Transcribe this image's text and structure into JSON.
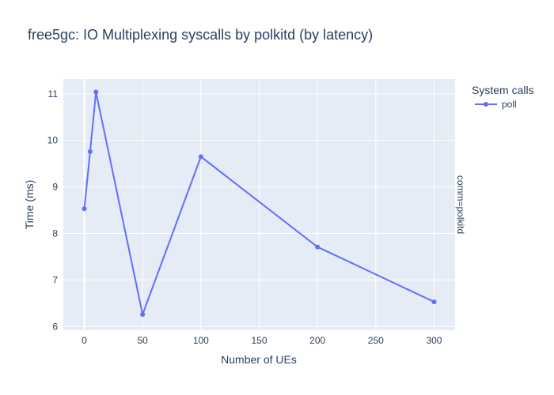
{
  "chart_data": {
    "type": "line",
    "title": "free5gc: IO Multiplexing syscalls by polkitd (by latency)",
    "xlabel": "Number of UEs",
    "ylabel": "Time (ms)",
    "xlim": [
      -18,
      318
    ],
    "ylim": [
      5.92,
      11.32
    ],
    "xticks": [
      0,
      50,
      100,
      150,
      200,
      250,
      300
    ],
    "yticks": [
      6,
      7,
      8,
      9,
      10,
      11
    ],
    "grid": true,
    "legend": {
      "title": "System calls",
      "placement": "top-right"
    },
    "facet_label": "comm=polkitd",
    "colors": {
      "plot_bg": "#e5ecf6",
      "grid": "#ffffff",
      "text": "#2a3f5f",
      "series": "#636efa"
    },
    "series": [
      {
        "name": "poll",
        "x": [
          0,
          5,
          10,
          50,
          100,
          200,
          300
        ],
        "y": [
          8.53,
          9.76,
          11.04,
          6.26,
          9.65,
          7.71,
          6.53
        ]
      }
    ]
  }
}
